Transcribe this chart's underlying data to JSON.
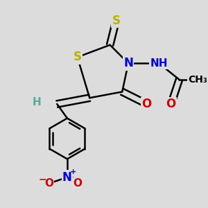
{
  "bg_color": "#dcdcdc",
  "bond_color": "#000000",
  "bond_width": 1.8,
  "figsize": [
    3.0,
    3.0
  ],
  "dpi": 100,
  "S_color": "#b8b000",
  "O_color": "#cc0000",
  "N_color": "#0000cc",
  "H_color": "#5aaa99",
  "C_color": "#000000",
  "xlim": [
    0.0,
    1.0
  ],
  "ylim": [
    0.0,
    1.0
  ]
}
